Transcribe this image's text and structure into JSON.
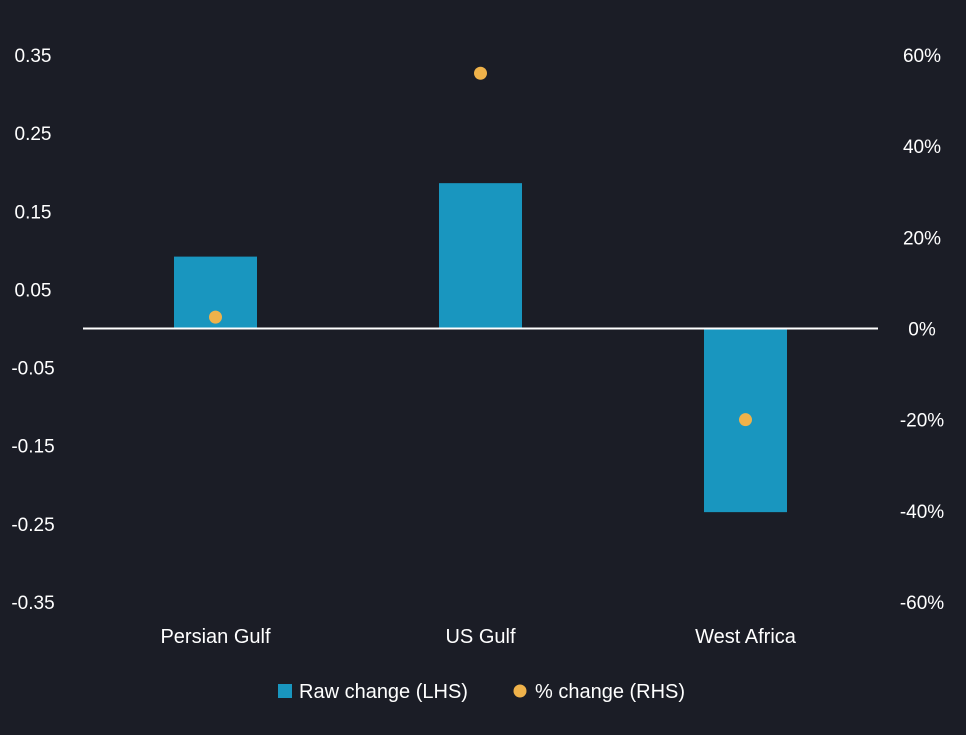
{
  "colors": {
    "background": "#1b1d26",
    "bar": "#1996bf",
    "dot": "#efb24a",
    "text": "#ffffff",
    "zero_line": "#ffffff"
  },
  "chart_data": {
    "type": "bar",
    "categories": [
      "Persian Gulf",
      "US Gulf",
      "West Africa"
    ],
    "series": [
      {
        "name": "Raw change (LHS)",
        "kind": "bar",
        "axis": "left",
        "values": [
          0.092,
          0.186,
          -0.235
        ]
      },
      {
        "name": "% change (RHS)",
        "kind": "dot",
        "axis": "right",
        "values": [
          2.5,
          56,
          -20
        ]
      }
    ],
    "left_axis": {
      "ylim": [
        -0.35,
        0.35
      ],
      "ticks": [
        0.35,
        0.25,
        0.15,
        0.05,
        -0.05,
        -0.15,
        -0.25,
        -0.35
      ],
      "tick_labels": [
        "0.35",
        "0.25",
        "0.15",
        "0.05",
        "-0.05",
        "-0.15",
        "-0.25",
        "-0.35"
      ]
    },
    "right_axis": {
      "ylim": [
        -60,
        60
      ],
      "ticks": [
        60,
        40,
        20,
        0,
        -20,
        -40,
        -60
      ],
      "tick_labels": [
        "60%",
        "40%",
        "20%",
        "0%",
        "-20%",
        "-40%",
        "-60%"
      ]
    },
    "title": "",
    "xlabel": "",
    "ylabel": "",
    "grid": false,
    "legend_position": "bottom-center",
    "legend": [
      {
        "label": "Raw change (LHS)",
        "marker": "square"
      },
      {
        "label": "% change (RHS)",
        "marker": "circle"
      }
    ]
  }
}
